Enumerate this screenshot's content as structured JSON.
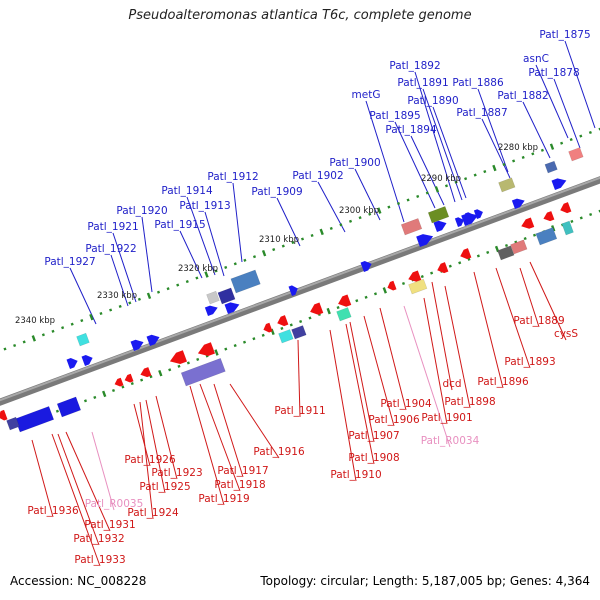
{
  "title": "Pseudoalteromonas atlantica T6c, complete genome",
  "footer": {
    "accession": "Accession: NC_008228",
    "topology": "Topology: circular; Length: 5,187,005 bp; Genes: 4,364"
  },
  "colors": {
    "forward_label": "#1f1fc8",
    "reverse_label": "#d01818",
    "rna_label": "#e890c0",
    "backbone": "#7a7a7a",
    "tick": "#2a8a2a"
  },
  "coordinate_labels": [
    "2280 kbp",
    "2290 kbp",
    "2300 kbp",
    "2310 kbp",
    "2320 kbp",
    "2330 kbp",
    "2340 kbp"
  ],
  "forward_genes": [
    "Patl_1875",
    "asnC",
    "Patl_1878",
    "Patl_1882",
    "Patl_1886",
    "Patl_1887",
    "Patl_1890",
    "Patl_1891",
    "Patl_1892",
    "Patl_1894",
    "Patl_1895",
    "metG",
    "Patl_1900",
    "Patl_1902",
    "Patl_1909",
    "Patl_1912",
    "Patl_1913",
    "Patl_1914",
    "Patl_1915",
    "Patl_1920",
    "Patl_1921",
    "Patl_1922",
    "Patl_1927"
  ],
  "reverse_genes": [
    "Patl_1889",
    "cysS",
    "Patl_1893",
    "Patl_1896",
    "dcd",
    "Patl_1898",
    "Patl_1901",
    "Patl_1904",
    "Patl_1906",
    "Patl_1907",
    "Patl_1908",
    "Patl_1910",
    "Patl_1911",
    "Patl_1916",
    "Patl_1917",
    "Patl_1918",
    "Patl_1919",
    "Patl_1923",
    "Patl_1924",
    "Patl_1925",
    "Patl_1926",
    "Patl_1931",
    "Patl_1932",
    "Patl_1933",
    "Patl_1936"
  ],
  "rna_genes": [
    "Patl_R0034",
    "Patl_R0035"
  ]
}
